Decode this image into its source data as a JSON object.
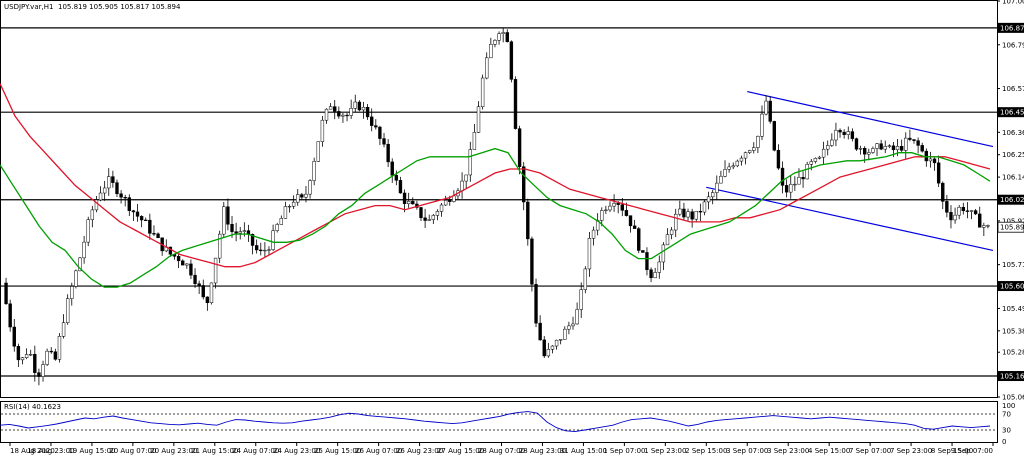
{
  "header": {
    "symbol": "USDJPY.var,H1",
    "ohlc": "105.819 105.905 105.817 105.894"
  },
  "rsi_header": {
    "label": "RSI(14) 40.1623"
  },
  "colors": {
    "background": "#ffffff",
    "candle": "#000000",
    "ma_fast": "#00a000",
    "ma_slow": "#e0142a",
    "channel": "#0000e0",
    "rsi_line": "#0000c8",
    "level_line": "#000000"
  },
  "chart_data": [
    {
      "type": "candlestick",
      "title": "USDJPY.var,H1",
      "ylim": [
        105.06,
        107.005
      ],
      "y_ticks": [
        "107.005",
        "106.790",
        "106.575",
        "106.360",
        "106.250",
        "106.140",
        "105.925",
        "105.710",
        "105.495",
        "105.385",
        "105.280",
        "105.060"
      ],
      "levels": [
        "106.873",
        "106.459",
        "106.029",
        "105.605",
        "105.163"
      ],
      "current_price": "105.894",
      "x_labels": [
        "18 Aug 2020",
        "18 Aug 23:00",
        "19 Aug 15:00",
        "20 Aug 07:00",
        "20 Aug 23:00",
        "21 Aug 15:00",
        "24 Aug 07:00",
        "24 Aug 23:00",
        "25 Aug 15:00",
        "26 Aug 07:00",
        "26 Aug 23:00",
        "27 Aug 15:00",
        "28 Aug 07:00",
        "28 Aug 23:00",
        "31 Aug 15:00",
        "1 Sep 07:00",
        "1 Sep 23:00",
        "2 Sep 15:00",
        "3 Sep 07:00",
        "3 Sep 23:00",
        "4 Sep 15:00",
        "7 Sep 07:00",
        "7 Sep 23:00",
        "8 Sep 15:00",
        "9 Sep 07:00"
      ],
      "price_path": [
        105.62,
        105.4,
        105.22,
        105.3,
        105.16,
        105.28,
        105.24,
        105.46,
        105.62,
        105.78,
        105.96,
        106.07,
        106.12,
        106.08,
        106.02,
        105.96,
        105.92,
        105.86,
        105.8,
        105.76,
        105.74,
        105.7,
        105.62,
        105.5,
        105.74,
        105.98,
        105.86,
        105.88,
        105.82,
        105.76,
        105.8,
        105.9,
        105.98,
        106.04,
        106.02,
        106.2,
        106.4,
        106.5,
        106.46,
        106.44,
        106.5,
        106.46,
        106.38,
        106.28,
        106.16,
        106.04,
        106.0,
        105.96,
        105.92,
        105.98,
        106.02,
        106.08,
        106.12,
        106.3,
        106.6,
        106.78,
        106.87,
        106.82,
        106.3,
        105.92,
        105.46,
        105.26,
        105.3,
        105.36,
        105.42,
        105.5,
        105.8,
        105.94,
        106.0,
        106.04,
        105.98,
        105.9,
        105.76,
        105.66,
        105.72,
        105.86,
        105.96,
        105.96,
        105.94,
        106.0,
        106.06,
        106.14,
        106.2,
        106.24,
        106.28,
        106.32,
        106.52,
        106.26,
        106.06,
        106.1,
        106.14,
        106.2,
        106.22,
        106.3,
        106.4,
        106.36,
        106.3,
        106.28,
        106.26,
        106.3,
        106.27,
        106.28,
        106.32,
        106.3,
        106.24,
        106.2,
        106.0,
        105.94,
        106.0,
        105.96,
        105.92,
        105.89
      ],
      "ma_fast_path": [
        106.2,
        106.1,
        106.0,
        105.9,
        105.82,
        105.78,
        105.7,
        105.64,
        105.6,
        105.6,
        105.62,
        105.66,
        105.7,
        105.75,
        105.78,
        105.8,
        105.82,
        105.84,
        105.86,
        105.86,
        105.84,
        105.82,
        105.82,
        105.83,
        105.86,
        105.9,
        105.96,
        106.0,
        106.06,
        106.1,
        106.14,
        106.18,
        106.22,
        106.24,
        106.24,
        106.24,
        106.24,
        106.26,
        106.28,
        106.26,
        106.16,
        106.1,
        106.04,
        106.0,
        105.98,
        105.96,
        105.92,
        105.86,
        105.78,
        105.74,
        105.74,
        105.78,
        105.82,
        105.86,
        105.88,
        105.9,
        105.92,
        105.96,
        106.0,
        106.06,
        106.12,
        106.16,
        106.18,
        106.2,
        106.21,
        106.22,
        106.22,
        106.23,
        106.24,
        106.26,
        106.26,
        106.24,
        106.24,
        106.22,
        106.2,
        106.16,
        106.12
      ],
      "ma_slow_path": [
        106.6,
        106.44,
        106.34,
        106.26,
        106.18,
        106.1,
        106.04,
        105.98,
        105.92,
        105.88,
        105.84,
        105.8,
        105.76,
        105.74,
        105.72,
        105.7,
        105.7,
        105.72,
        105.76,
        105.8,
        105.84,
        105.88,
        105.92,
        105.96,
        105.98,
        106.0,
        106.0,
        105.98,
        106.0,
        106.02,
        106.04,
        106.08,
        106.12,
        106.16,
        106.18,
        106.18,
        106.16,
        106.12,
        106.08,
        106.06,
        106.04,
        106.02,
        106.0,
        105.98,
        105.96,
        105.94,
        105.92,
        105.92,
        105.92,
        105.94,
        105.94,
        105.96,
        105.98,
        106.02,
        106.06,
        106.1,
        106.14,
        106.16,
        106.18,
        106.2,
        106.22,
        106.24,
        106.24,
        106.24,
        106.22,
        106.2,
        106.18
      ],
      "channel_upper": [
        {
          "x": "3 Sep 07:00",
          "y": 106.56
        },
        {
          "x": "9 Sep 07:00",
          "y": 106.29
        }
      ],
      "channel_lower": [
        {
          "x": "2 Sep 15:00",
          "y": 106.09
        },
        {
          "x": "9 Sep 07:00",
          "y": 105.78
        }
      ]
    },
    {
      "type": "line",
      "title": "RSI(14) 40.1623",
      "ylim": [
        0,
        100
      ],
      "y_ticks": [
        "100",
        "70",
        "30",
        "0"
      ],
      "levels": [
        70,
        30
      ],
      "values": [
        42,
        44,
        40,
        35,
        38,
        41,
        45,
        50,
        55,
        60,
        58,
        62,
        65,
        60,
        56,
        52,
        48,
        46,
        44,
        43,
        45,
        47,
        44,
        42,
        50,
        56,
        55,
        52,
        50,
        48,
        47,
        48,
        52,
        55,
        58,
        62,
        68,
        72,
        70,
        66,
        64,
        62,
        60,
        58,
        55,
        52,
        50,
        48,
        46,
        48,
        52,
        56,
        60,
        64,
        70,
        74,
        76,
        72,
        50,
        36,
        28,
        26,
        30,
        34,
        38,
        42,
        50,
        56,
        58,
        60,
        56,
        52,
        46,
        40,
        44,
        50,
        54,
        56,
        58,
        60,
        62,
        64,
        66,
        64,
        62,
        60,
        58,
        60,
        62,
        60,
        58,
        56,
        54,
        52,
        50,
        48,
        46,
        42,
        34,
        32,
        36,
        40,
        38,
        36,
        38,
        40
      ]
    }
  ]
}
